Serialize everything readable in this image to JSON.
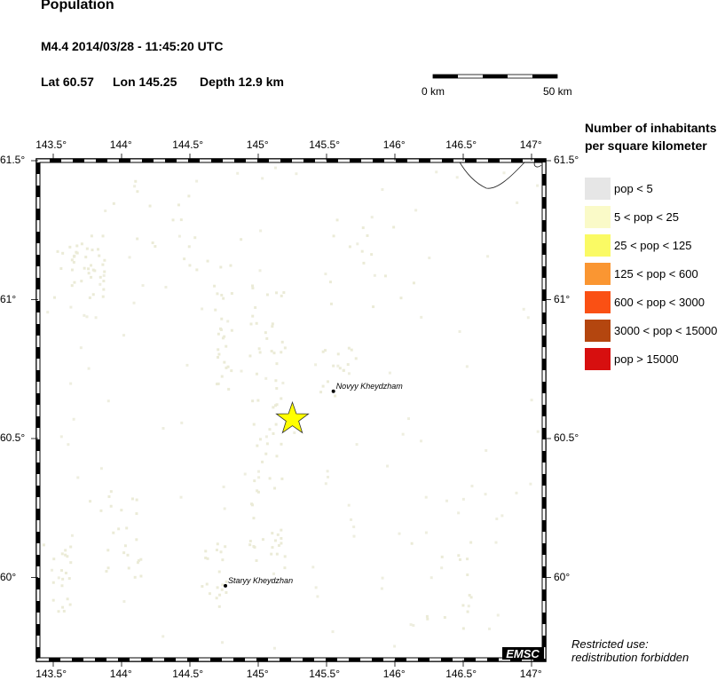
{
  "header": {
    "title": "Population",
    "event": "M4.4  2014/03/28 - 11:45:20 UTC",
    "lat": "Lat 60.57",
    "lon": "Lon 145.25",
    "depth": "Depth  12.9 km"
  },
  "scale_bar": {
    "start_label": "0 km",
    "end_label": "50 km"
  },
  "map": {
    "lon_ticks": [
      "143.5°",
      "144°",
      "144.5°",
      "145°",
      "145.5°",
      "146°",
      "146.5°",
      "147°"
    ],
    "lon_values": [
      143.5,
      144,
      144.5,
      145,
      145.5,
      146,
      146.5,
      147
    ],
    "lat_ticks": [
      "61.5°",
      "61°",
      "60.5°",
      "60°"
    ],
    "lat_values": [
      61.5,
      61,
      60.5,
      60
    ],
    "epicenter": {
      "lat": 60.57,
      "lon": 145.25,
      "icon": "star-icon",
      "color": "#ffff00"
    },
    "places": [
      {
        "name": "Novyy Kheydzham",
        "lat": 60.67,
        "lon": 145.55
      },
      {
        "name": "Staryy Kheydzhan",
        "lat": 59.97,
        "lon": 144.76
      }
    ],
    "logo": "EMSC"
  },
  "legend": {
    "title_line1": "Number of inhabitants",
    "title_line2": "per square kilometer",
    "items": [
      {
        "label": "pop < 5",
        "color": "#e6e6e6"
      },
      {
        "label": "5 < pop < 25",
        "color": "#fafac8"
      },
      {
        "label": "25 < pop < 125",
        "color": "#fafa64"
      },
      {
        "label": "125 < pop < 600",
        "color": "#fa9632"
      },
      {
        "label": "600 < pop < 3000",
        "color": "#fa5014"
      },
      {
        "label": "3000 < pop < 15000",
        "color": "#b4460f"
      },
      {
        "label": "pop > 15000",
        "color": "#d70f0f"
      }
    ]
  },
  "footer": {
    "line1": "Restricted use:",
    "line2": "redistribution forbidden"
  }
}
